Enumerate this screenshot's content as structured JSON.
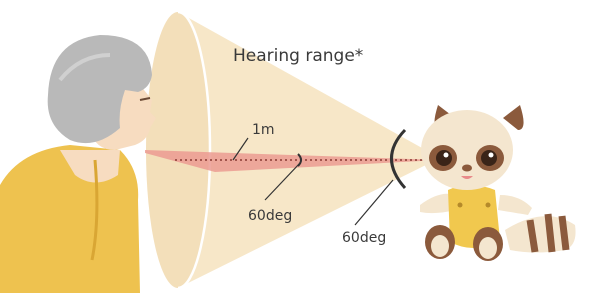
{
  "title": "Hearing range*",
  "labels": {
    "distance": "1m",
    "angle_near": "60deg",
    "angle_far": "60deg"
  }
}
